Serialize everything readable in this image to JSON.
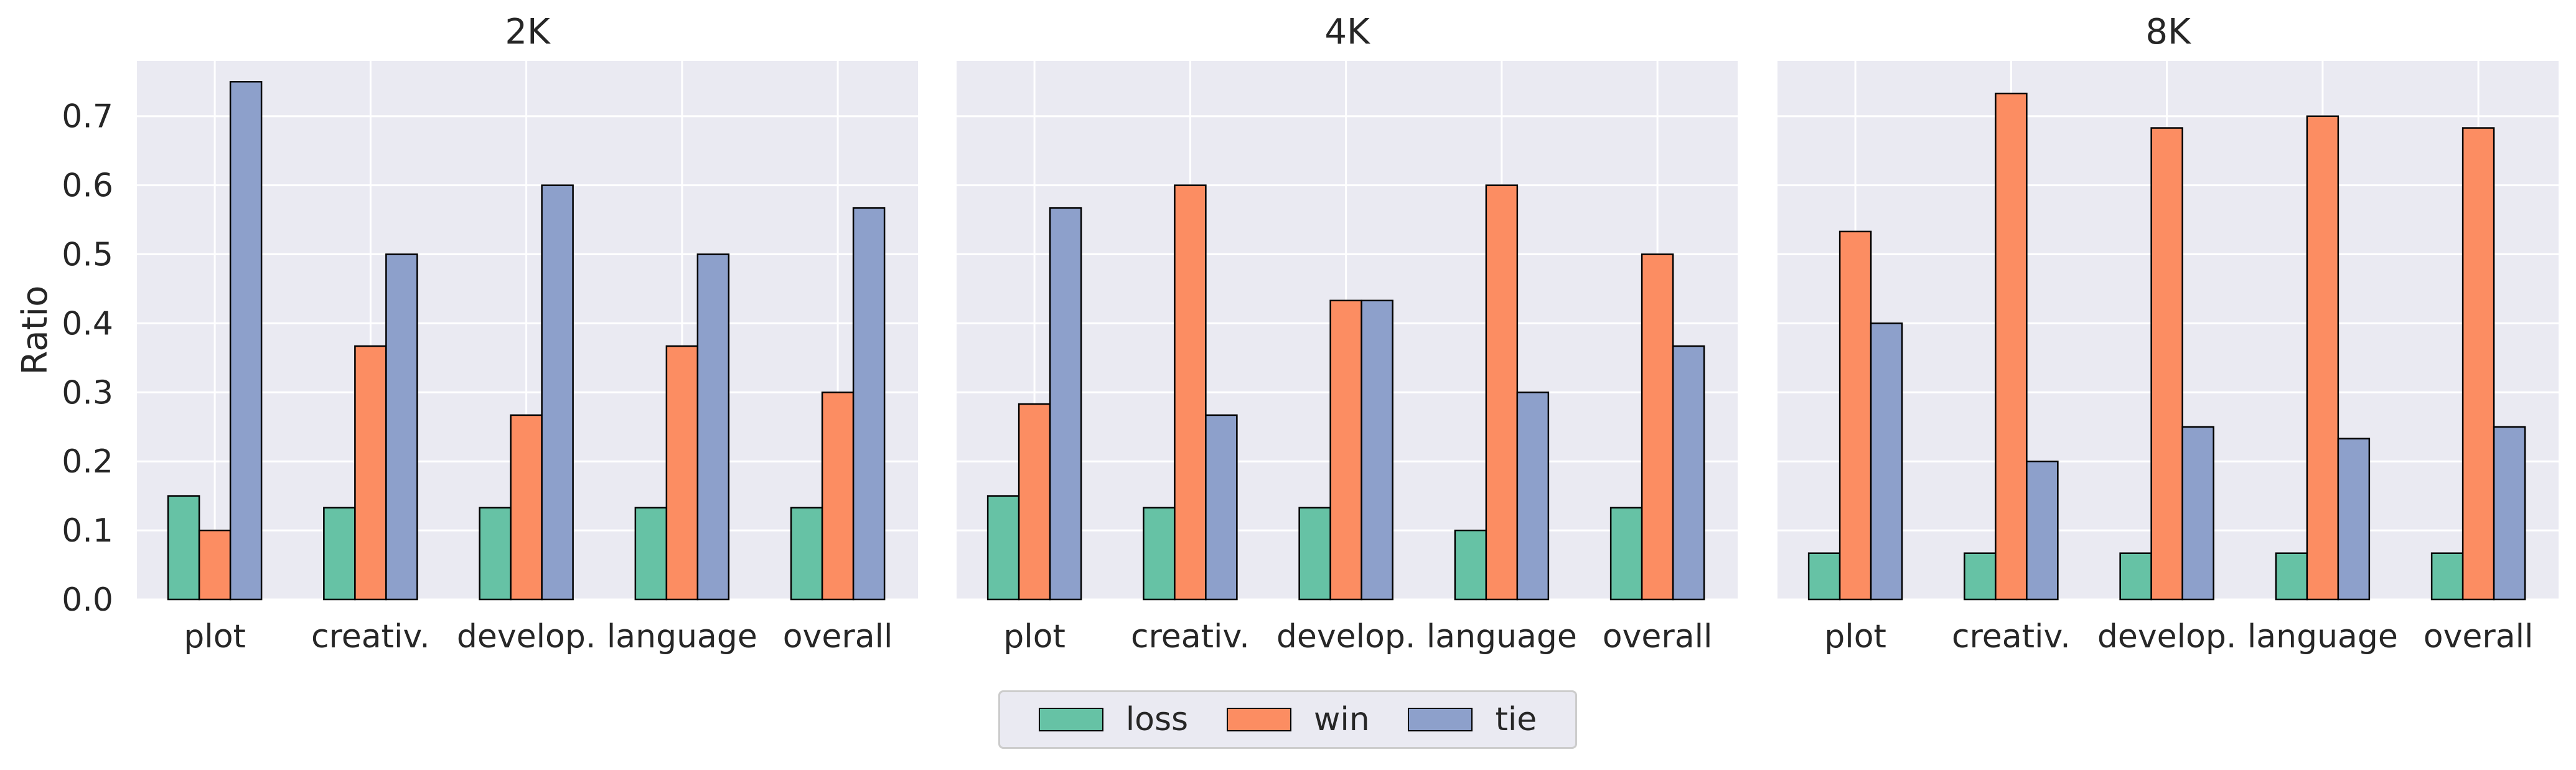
{
  "chart_data": {
    "type": "bar",
    "ylabel": "Ratio",
    "ylim": [
      0,
      0.78
    ],
    "yticks": [
      "0.0",
      "0.1",
      "0.2",
      "0.3",
      "0.4",
      "0.5",
      "0.6",
      "0.7"
    ],
    "grid": true,
    "legend_position": "bottom-center",
    "colors": {
      "loss": "#66c2a5",
      "win": "#fc8d62",
      "tie": "#8da0cb",
      "panel_bg": "#eaeaf2"
    },
    "series_names": [
      "loss",
      "win",
      "tie"
    ],
    "categories": [
      "plot",
      "creativ.",
      "develop.",
      "language",
      "overall"
    ],
    "panels": [
      {
        "title": "2K",
        "series": [
          {
            "name": "loss",
            "values": [
              0.15,
              0.133,
              0.133,
              0.133,
              0.133
            ]
          },
          {
            "name": "win",
            "values": [
              0.1,
              0.367,
              0.267,
              0.367,
              0.3
            ]
          },
          {
            "name": "tie",
            "values": [
              0.75,
              0.5,
              0.6,
              0.5,
              0.567
            ]
          }
        ]
      },
      {
        "title": "4K",
        "series": [
          {
            "name": "loss",
            "values": [
              0.15,
              0.133,
              0.133,
              0.1,
              0.133
            ]
          },
          {
            "name": "win",
            "values": [
              0.283,
              0.6,
              0.433,
              0.6,
              0.5
            ]
          },
          {
            "name": "tie",
            "values": [
              0.567,
              0.267,
              0.433,
              0.3,
              0.367
            ]
          }
        ]
      },
      {
        "title": "8K",
        "series": [
          {
            "name": "loss",
            "values": [
              0.067,
              0.067,
              0.067,
              0.067,
              0.067
            ]
          },
          {
            "name": "win",
            "values": [
              0.533,
              0.733,
              0.683,
              0.7,
              0.683
            ]
          },
          {
            "name": "tie",
            "values": [
              0.4,
              0.2,
              0.25,
              0.233,
              0.25
            ]
          }
        ]
      }
    ]
  }
}
